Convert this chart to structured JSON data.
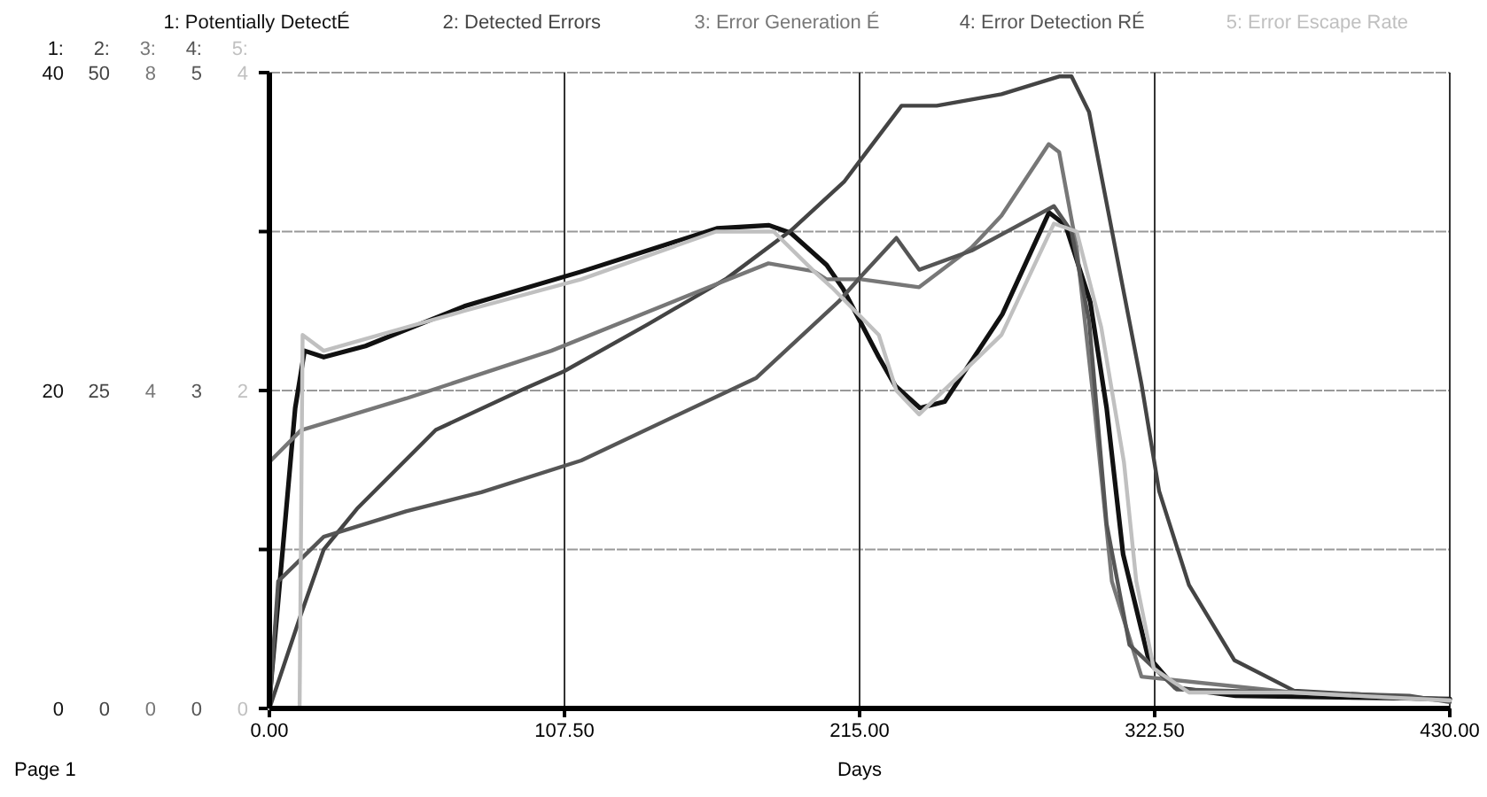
{
  "chart_data": [
    {
      "type": "line",
      "xlabel": "Days",
      "annotations": [
        "Page 1",
        "1:",
        "2:",
        "3:"
      ],
      "xlim": [
        0,
        430
      ],
      "xticks": [
        {
          "value": 0,
          "label": "0.00"
        },
        {
          "value": 107.5,
          "label": "107.50"
        },
        {
          "value": 215,
          "label": "215.00"
        },
        {
          "value": 322.5,
          "label": "322.50"
        },
        {
          "value": 430,
          "label": "430.00"
        }
      ],
      "ylim": [
        0,
        40
      ],
      "yticks": [
        0,
        {
          "value": 10,
          "label": null
        },
        20,
        {
          "value": 30,
          "label": null
        },
        40
      ],
      "y2lim": [
        0,
        50
      ],
      "y2ticks": [
        0,
        25,
        50
      ],
      "y3lim": [
        0,
        8
      ],
      "y3ticks": [
        0,
        4,
        8
      ],
      "grid": true,
      "legend": "top",
      "line_style": "solid",
      "series": [
        {
          "name": "1: Potentially DetectÉ",
          "color": "#111111",
          "x": [
            0,
            9.4,
            12.8,
            19.8,
            35,
            71,
            114,
            163,
            182,
            190,
            203,
            209,
            222,
            228,
            237,
            246,
            267,
            284,
            290,
            299,
            305,
            311,
            320,
            330,
            352,
            430
          ],
          "values": [
            0.5,
            18.9,
            22.5,
            22.1,
            22.8,
            25.3,
            27.5,
            30.2,
            30.4,
            29.9,
            27.9,
            26.4,
            22.1,
            20.3,
            18.9,
            19.3,
            24.8,
            31.2,
            30.4,
            25.6,
            18.9,
            9.7,
            3.3,
            1.3,
            0.8,
            0.6
          ]
        },
        {
          "name": "2: Detected Errors",
          "color": "#444444",
          "axis": "y2",
          "x": [
            0,
            11.5,
            19.8,
            31.9,
            60.6,
            92.5,
            107.2,
            137.8,
            166.5,
            190.1,
            209.3,
            215.6,
            230.3,
            243.1,
            266.7,
            287.7,
            292.2,
            298.6,
            306.9,
            317.7,
            324.1,
            335,
            351.5,
            373.2,
            430
          ],
          "values": [
            0,
            7.4,
            12.5,
            15.7,
            21.9,
            25.1,
            26.5,
            30.2,
            33.8,
            37.6,
            41.4,
            43.2,
            47.4,
            47.4,
            48.3,
            49.7,
            49.7,
            46.9,
            37.6,
            25.5,
            17.1,
            9.7,
            3.8,
            1.4,
            0.7
          ]
        },
        {
          "name": "3: Error Generation É",
          "color": "#777777",
          "axis": "y3",
          "x": [
            0,
            11.5,
            49.8,
            102.7,
            160.1,
            181.8,
            198.4,
            202.9,
            215.6,
            236.7,
            255.8,
            266.7,
            283.9,
            287.7,
            294.1,
            300.5,
            306.9,
            317.7,
            373.2,
            430
          ],
          "values": [
            3.1,
            3.5,
            3.9,
            4.5,
            5.3,
            5.6,
            5.5,
            5.4,
            5.4,
            5.3,
            5.8,
            6.2,
            7.1,
            7.0,
            5.8,
            3.8,
            1.6,
            0.4,
            0.2,
            0.1
          ]
        }
      ]
    },
    {
      "type": "line",
      "annotations": [
        "4:",
        "5:"
      ],
      "tick_labels": "y",
      "legend": "top",
      "line_style": "solid",
      "xlim": [
        0,
        430
      ],
      "ylim": [
        0,
        5
      ],
      "yticks": [
        0,
        {
          "value": 2.5,
          "label": "3"
        },
        5
      ],
      "y2lim": [
        0,
        4
      ],
      "y2ticks": [
        0,
        2,
        4
      ],
      "series": [
        {
          "name": "4: Error Detection RÉ",
          "color": "#555555",
          "x": [
            0,
            3.2,
            19.8,
            49.8,
            77.2,
            113.6,
            177.4,
            207.4,
            215.6,
            228.4,
            236.7,
            255.8,
            285.8,
            292.2,
            298.6,
            305,
            313.3,
            330.5,
            415.3,
            430
          ],
          "values": [
            0,
            1.0,
            1.35,
            1.55,
            1.7,
            1.95,
            2.6,
            3.2,
            3.4,
            3.7,
            3.45,
            3.6,
            3.95,
            3.75,
            3.05,
            1.45,
            0.5,
            0.15,
            0.1,
            0.05
          ]
        },
        {
          "name": "5: Error Escape Rate",
          "color": "#c0c0c0",
          "axis": "y2",
          "x": [
            0,
            11,
            12.1,
            19.8,
            70.8,
            113.6,
            162.7,
            183.7,
            198.4,
            204.8,
            222,
            228.4,
            236.7,
            266.7,
            285.8,
            294.1,
            303,
            311.3,
            315.8,
            322.2,
            335,
            373,
            430
          ],
          "values": [
            0,
            0,
            2.35,
            2.25,
            2.5,
            2.7,
            3.0,
            3.0,
            2.75,
            2.65,
            2.35,
            2.0,
            1.85,
            2.35,
            3.05,
            3.0,
            2.4,
            1.55,
            0.8,
            0.25,
            0.1,
            0.1,
            0.05
          ]
        }
      ]
    }
  ]
}
